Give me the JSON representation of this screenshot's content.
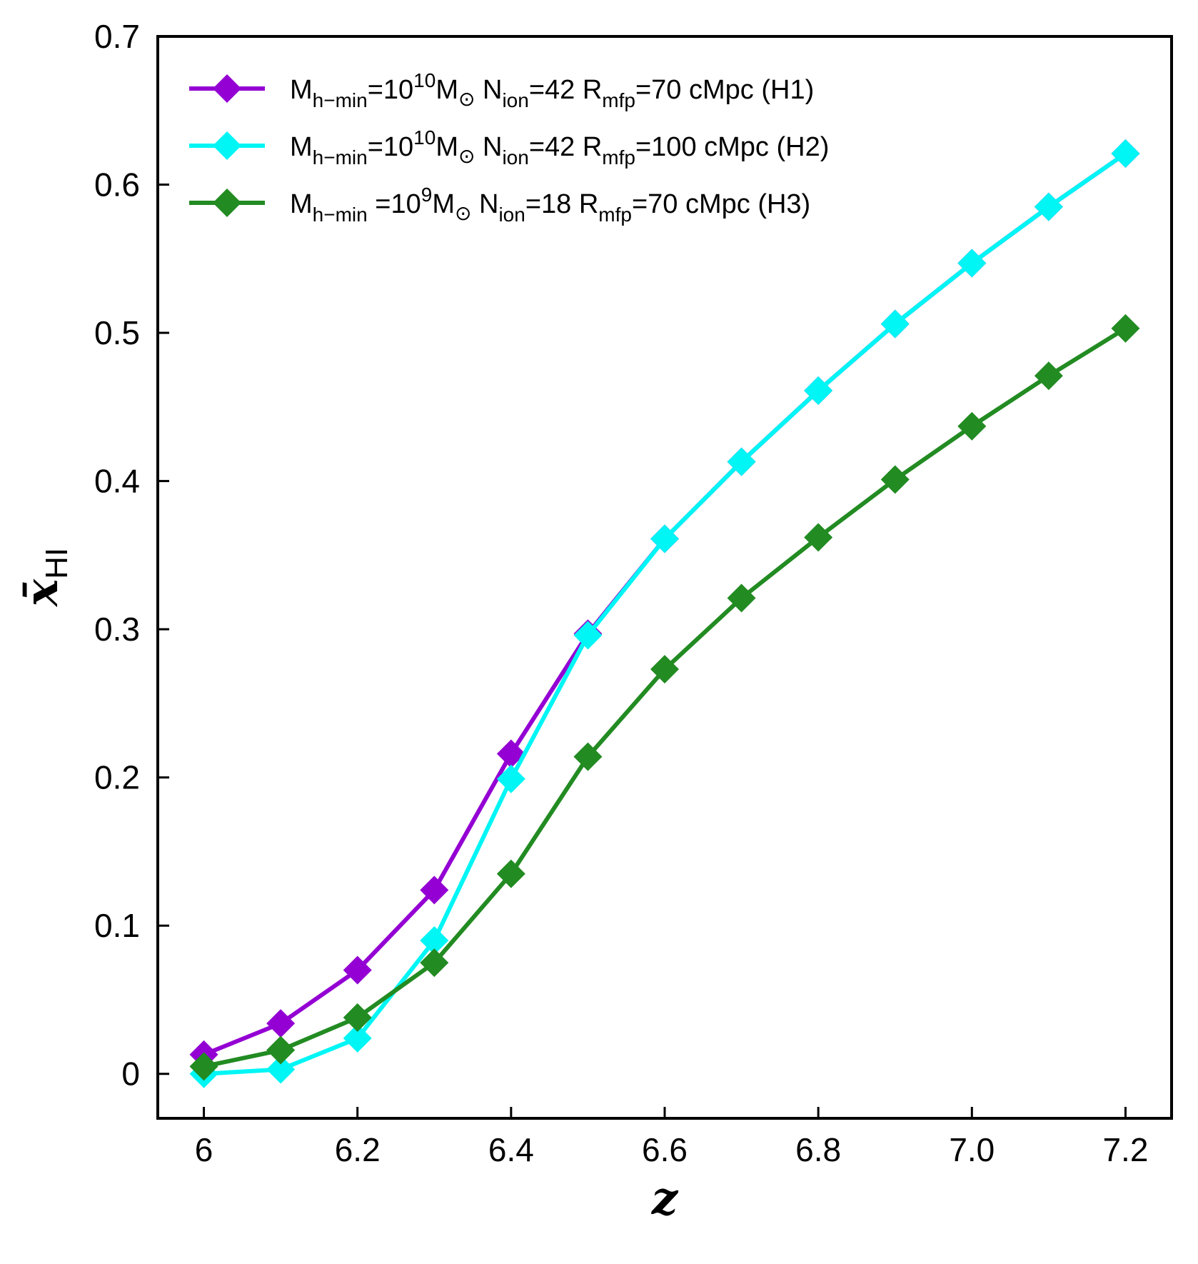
{
  "chart_data": {
    "type": "line",
    "title": "",
    "xlabel": "z",
    "ylabel": "x̄",
    "ylabel_subscript": "HI",
    "xlim": [
      5.94,
      7.26
    ],
    "ylim": [
      -0.03,
      0.7
    ],
    "x_ticks": [
      6,
      6.2,
      6.4,
      6.6,
      6.8,
      7.0,
      7.2
    ],
    "x_tick_labels": [
      "6",
      "6.2",
      "6.4",
      "6.6",
      "6.8",
      "7.0",
      "7.2"
    ],
    "y_ticks": [
      0,
      0.1,
      0.2,
      0.3,
      0.4,
      0.5,
      0.6,
      0.7
    ],
    "y_tick_labels": [
      "0",
      "0.1",
      "0.2",
      "0.3",
      "0.4",
      "0.5",
      "0.6",
      "0.7"
    ],
    "grid": false,
    "legend_position": "top-left",
    "x": [
      6.0,
      6.1,
      6.2,
      6.3,
      6.4,
      6.5,
      6.6,
      6.7,
      6.8,
      6.9,
      7.0,
      7.1,
      7.2
    ],
    "series": [
      {
        "name": "H1",
        "color": "#9400D3",
        "marker": "diamond",
        "legend": {
          "m": "M",
          "m_sub": "h−min",
          "m_eq": "=10",
          "m_exp": "10",
          "msun": "M",
          "sun": "⊙",
          "n": " N",
          "n_sub": "ion",
          "n_val": "=42 R",
          "r_sub": "mfp",
          "r_val": "=70 cMpc (H1)"
        },
        "values": [
          0.013,
          0.034,
          0.07,
          0.124,
          0.216,
          0.297,
          0.361,
          0.413,
          0.461,
          0.506,
          0.547,
          0.585,
          0.621
        ]
      },
      {
        "name": "H2",
        "color": "#00F5F5",
        "marker": "diamond",
        "legend": {
          "m": "M",
          "m_sub": "h−min",
          "m_eq": "=10",
          "m_exp": "10",
          "msun": "M",
          "sun": "⊙",
          "n": " N",
          "n_sub": "ion",
          "n_val": "=42 R",
          "r_sub": "mfp",
          "r_val": "=100 cMpc (H2)"
        },
        "values": [
          0.0,
          0.003,
          0.024,
          0.09,
          0.199,
          0.296,
          0.361,
          0.413,
          0.461,
          0.506,
          0.547,
          0.585,
          0.621
        ]
      },
      {
        "name": "H3",
        "color": "#228B22",
        "marker": "diamond",
        "legend": {
          "m": "M",
          "m_sub": "h−min",
          "m_eq": " =10",
          "m_exp": "9",
          "msun": "M",
          "sun": "⊙",
          "n": " N",
          "n_sub": "ion",
          "n_val": "=18 R",
          "r_sub": "mfp",
          "r_val": "=70 cMpc (H3)"
        },
        "values": [
          0.005,
          0.016,
          0.038,
          0.075,
          0.135,
          0.214,
          0.273,
          0.321,
          0.362,
          0.401,
          0.437,
          0.471,
          0.503
        ]
      }
    ]
  }
}
